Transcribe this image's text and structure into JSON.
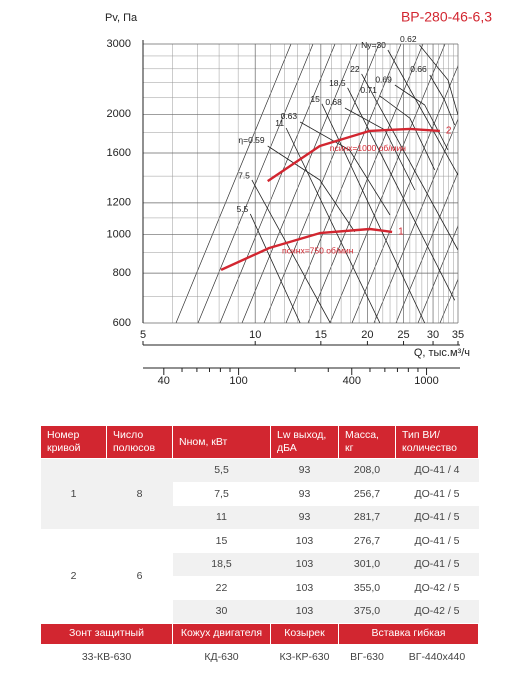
{
  "chart_data": {
    "type": "line",
    "title": "ВР-280-46-6,3",
    "y_label": "Pv, Па",
    "x_label": "Q, тыс.м³/ч",
    "log_x": true,
    "log_y": true,
    "grid": true,
    "xlim": [
      5,
      35
    ],
    "xticks": [
      5,
      10,
      15,
      20,
      25,
      30,
      35
    ],
    "xminor": [
      6,
      7,
      8,
      9,
      11,
      12,
      13,
      14,
      16,
      17,
      18,
      19,
      21,
      22,
      23,
      24,
      26,
      27,
      28,
      29,
      31,
      32,
      33,
      34
    ],
    "ylim": [
      600,
      3000
    ],
    "yticks": [
      600,
      800,
      1000,
      1200,
      1600,
      2000,
      3000
    ],
    "yminor": [
      700,
      900,
      1100,
      1400,
      1800,
      2200,
      2400,
      2600,
      2800
    ],
    "x2lim": [
      31,
      1470
    ],
    "x2ticks": [
      40,
      100,
      400,
      1000
    ],
    "x2minor": [
      50,
      60,
      70,
      80,
      90,
      200,
      300,
      500,
      600,
      700,
      800,
      900
    ],
    "series": [
      {
        "name": "2",
        "label": "nсинх=1000 об/мин",
        "color": "#d22630",
        "x": [
          10.8,
          14.9,
          20.3,
          26.0,
          31.3
        ],
        "y": [
          1360,
          1666,
          1817,
          1838,
          1817
        ]
      },
      {
        "name": "1",
        "label": "nсинх=750 об/мин",
        "color": "#d22630",
        "x": [
          8.1,
          10.9,
          14.9,
          20.3,
          23.3
        ],
        "y": [
          815,
          925,
          1008,
          1032,
          1015
        ]
      }
    ],
    "power_lines": [
      {
        "name": "Nу=30",
        "x": [
          22.7,
          35
        ],
        "y": [
          2898,
          1410
        ]
      },
      {
        "name": "22",
        "x": [
          19.3,
          35
        ],
        "y": [
          2524,
          914
        ]
      },
      {
        "name": "18.5",
        "x": [
          17.7,
          34.3
        ],
        "y": [
          2330,
          684
        ]
      },
      {
        "name": "15",
        "x": [
          15.1,
          28.5
        ],
        "y": [
          2125,
          600
        ]
      },
      {
        "name": "11",
        "x": [
          12.1,
          21.6
        ],
        "y": [
          1848,
          600
        ]
      },
      {
        "name": "7.5",
        "x": [
          9.8,
          15.9
        ],
        "y": [
          1369,
          600
        ]
      },
      {
        "name": "5.5",
        "x": [
          9.7,
          13.2
        ],
        "y": [
          1126,
          600
        ]
      }
    ],
    "efficiency_lines": [
      {
        "name": "η=0.59",
        "x": [
          10.8,
          14.9,
          18.5
        ],
        "y": [
          1666,
          1369,
          1015
        ]
      },
      {
        "name": "0.63",
        "x": [
          13.2,
          17.9,
          23.0
        ],
        "y": [
          1913,
          1628,
          1119
        ]
      },
      {
        "name": "0.68",
        "x": [
          17.4,
          22.3,
          26.8
        ],
        "y": [
          2074,
          1827,
          1292
        ]
      },
      {
        "name": "0.71",
        "x": [
          21.6,
          26.0,
          30.3
        ],
        "y": [
          2223,
          1955,
          1451
        ]
      },
      {
        "name": "0.69",
        "x": [
          23.7,
          28.5,
          32.9
        ],
        "y": [
          2368,
          2110,
          1628
        ]
      },
      {
        "name": "0.66",
        "x": [
          29.4,
          32.2,
          34.3
        ],
        "y": [
          2509,
          2172,
          1880
        ]
      },
      {
        "name": "0.62",
        "x": [
          27.6,
          32.9,
          35
        ],
        "y": [
          2983,
          2437,
          1992
        ]
      }
    ]
  },
  "table": {
    "header": [
      "Номер кривой",
      "Число полюсов",
      "Nном, кВт",
      "Lw выход, дБА",
      "Масса, кг",
      "Тип ВИ/ количество"
    ],
    "groups": [
      {
        "curve": "1",
        "poles": "8",
        "rows": [
          [
            "5,5",
            "93",
            "208,0",
            "ДО-41 / 4"
          ],
          [
            "7,5",
            "93",
            "256,7",
            "ДО-41 / 5"
          ],
          [
            "11",
            "93",
            "281,7",
            "ДО-41 / 5"
          ]
        ]
      },
      {
        "curve": "2",
        "poles": "6",
        "rows": [
          [
            "15",
            "103",
            "276,7",
            "ДО-41 / 5"
          ],
          [
            "18,5",
            "103",
            "301,0",
            "ДО-41 / 5"
          ],
          [
            "22",
            "103",
            "355,0",
            "ДО-42 / 5"
          ],
          [
            "30",
            "103",
            "375,0",
            "ДО-42 / 5"
          ]
        ]
      }
    ],
    "accessories_header": [
      "Зонт защитный",
      "Кожух двигателя",
      "Козырек",
      "Вставка гибкая"
    ],
    "accessories": [
      "33-КВ-630",
      "КД-630",
      "КЗ-КР-630",
      "ВГ-630",
      "ВГ-440х440"
    ]
  }
}
